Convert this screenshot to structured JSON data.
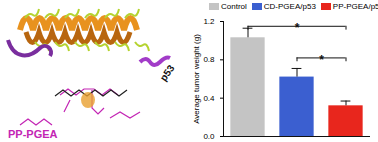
{
  "chart_data": {
    "type": "bar",
    "categories": [
      "Control",
      "CD-PGEA/p53",
      "PP-PGEA/p53"
    ],
    "values": [
      1.03,
      0.62,
      0.32
    ],
    "errors": [
      0.1,
      0.09,
      0.05
    ],
    "colors": [
      "#c4c4c4",
      "#3b5fd0",
      "#e8261d"
    ],
    "y_label": "Average tumor weight (g)",
    "ylim": [
      0,
      1.2
    ],
    "yticks": [
      {
        "value": 0,
        "label": "0.0"
      },
      {
        "value": 0.4,
        "label": "0.4"
      },
      {
        "value": 0.8,
        "label": "0.8"
      },
      {
        "value": 1.2,
        "label": "1.2"
      }
    ],
    "legend": "top",
    "significance": [
      {
        "from": "Control",
        "to": "PP-PGEA/p53",
        "y": 1.15,
        "label": "*"
      },
      {
        "from": "CD-PGEA/p53",
        "to": "PP-PGEA/p53",
        "y": 0.82,
        "label": "*"
      }
    ]
  },
  "diagram": {
    "labels": [
      "PP-PGEA",
      "p53"
    ]
  }
}
